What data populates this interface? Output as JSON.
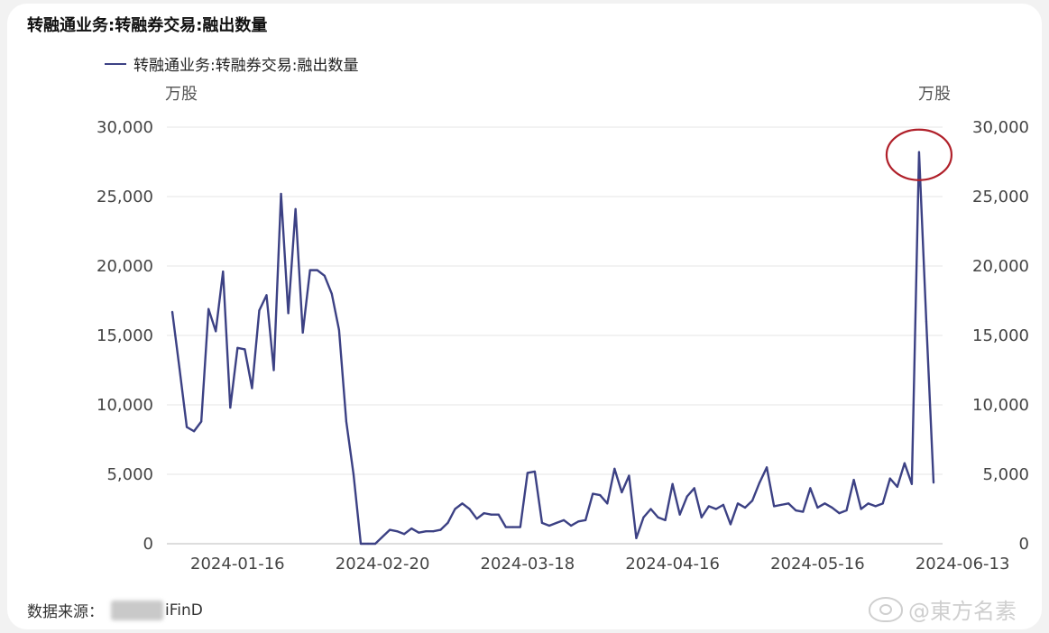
{
  "title": "转融通业务:转融券交易:融出数量",
  "legend_label": "转融通业务:转融券交易:融出数量",
  "unit_left": "万股",
  "unit_right": "万股",
  "source_label": "数据来源：",
  "source_name": "iFinD",
  "watermark": "@東方名素",
  "colors": {
    "line": "#3c4184",
    "annotation": "#b0202a",
    "grid": "#e4e4e4",
    "tick": "#444444"
  },
  "chart_data": {
    "type": "line",
    "title": "转融通业务:转融券交易:融出数量",
    "ylabel": "万股",
    "ylim": [
      0,
      30000
    ],
    "yticks": [
      0,
      5000,
      10000,
      15000,
      20000,
      25000,
      30000
    ],
    "ytick_labels": [
      "0",
      "5,000",
      "10,000",
      "15,000",
      "20,000",
      "25,000",
      "30,000"
    ],
    "xtick_labels": [
      "2024-01-16",
      "2024-02-20",
      "2024-03-18",
      "2024-04-16",
      "2024-05-16",
      "2024-06-13"
    ],
    "xtick_index": [
      9,
      29,
      49,
      69,
      89,
      109
    ],
    "grid": true,
    "series": [
      {
        "name": "转融通业务:转融券交易:融出数量",
        "values": [
          16700,
          12600,
          8400,
          8100,
          8800,
          16900,
          15300,
          19600,
          9800,
          14100,
          14000,
          11200,
          16800,
          17900,
          12500,
          25200,
          16600,
          24100,
          15200,
          19700,
          19700,
          19300,
          18000,
          15400,
          8800,
          5000,
          0,
          0,
          0,
          500,
          1000,
          900,
          700,
          1100,
          800,
          900,
          900,
          1000,
          1500,
          2500,
          2900,
          2500,
          1800,
          2200,
          2100,
          2100,
          1200,
          1200,
          1200,
          5100,
          5200,
          1500,
          1300,
          1500,
          1700,
          1300,
          1600,
          1700,
          3600,
          3500,
          2900,
          5400,
          3700,
          4900,
          400,
          1900,
          2500,
          1900,
          1700,
          4300,
          2100,
          3400,
          4000,
          1900,
          2700,
          2500,
          2800,
          1400,
          2900,
          2600,
          3100,
          4400,
          5500,
          2700,
          2800,
          2900,
          2400,
          2300,
          4000,
          2600,
          2900,
          2600,
          2200,
          2400,
          4600,
          2500,
          2900,
          2700,
          2900,
          4700,
          4100,
          5800,
          4300,
          28200,
          16000,
          4400
        ]
      }
    ],
    "annotation": "circle around peak 28200 near 2024-06-13"
  }
}
